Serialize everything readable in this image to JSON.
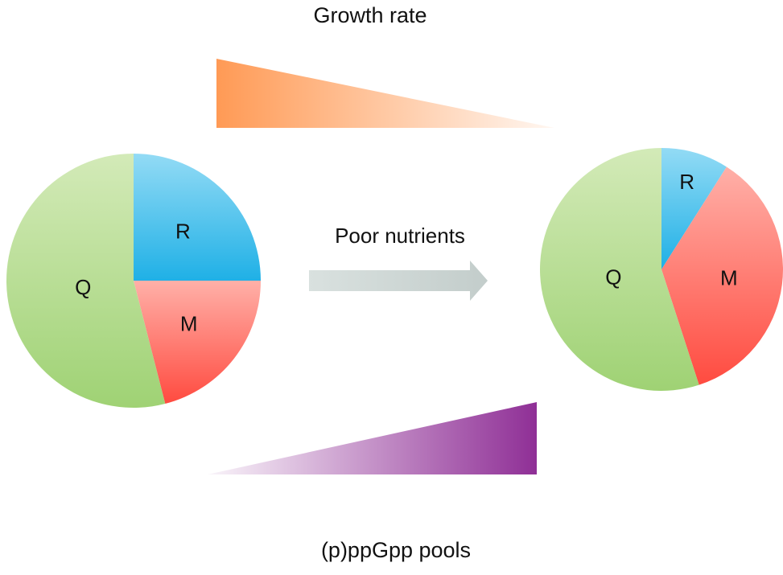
{
  "labels": {
    "top_title": "Growth rate",
    "bottom_title": "(p)ppGpp pools",
    "arrow_label": "Poor nutrients"
  },
  "colors": {
    "R": "#1fb6ea",
    "M": "#ff4d43",
    "Q": "#a6d77a",
    "growth_wedge": "#ff9a55",
    "ppgpp_wedge": "#8f2f96",
    "arrow": "#cfd8d6"
  },
  "chart_data": [
    {
      "type": "pie",
      "title": "",
      "slices": [
        {
          "label": "R",
          "value": 25
        },
        {
          "label": "M",
          "value": 21
        },
        {
          "label": "Q",
          "value": 54
        }
      ]
    },
    {
      "type": "pie",
      "title": "",
      "slices": [
        {
          "label": "R",
          "value": 9
        },
        {
          "label": "M",
          "value": 36
        },
        {
          "label": "Q",
          "value": 55
        }
      ]
    }
  ]
}
